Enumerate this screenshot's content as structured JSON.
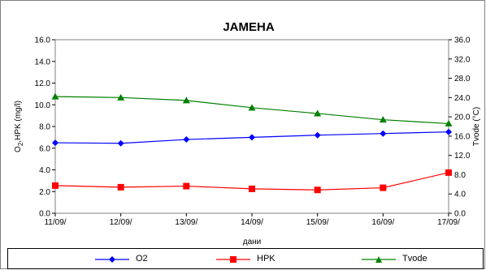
{
  "chart_data": {
    "type": "line",
    "title": "ЈАМЕНА",
    "xlabel": "дани",
    "ylabel": "O2,HPK (mg/l)",
    "ylabel_parts": {
      "base": "O",
      "sub": "2",
      "rest": ",HPK (mg/l)"
    },
    "y2label": "Tvode (°C)",
    "categories": [
      "11/09/",
      "12/09/",
      "13/09/",
      "14/09/",
      "15/09/",
      "16/09/",
      "17/09/"
    ],
    "ylim": [
      0,
      16
    ],
    "y_ticks": [
      "0.0",
      "2.0",
      "4.0",
      "6.0",
      "8.0",
      "10.0",
      "12.0",
      "14.0",
      "16.0"
    ],
    "y2lim": [
      0,
      36
    ],
    "y2_ticks": [
      "0.0",
      "4.0",
      "8.0",
      "12.0",
      "16.0",
      "20.0",
      "24.0",
      "28.0",
      "32.0",
      "36.0"
    ],
    "grid": false,
    "legend_position": "bottom",
    "series": [
      {
        "name": "O2",
        "axis": "left",
        "color": "#0000ff",
        "marker": "diamond",
        "values": [
          6.5,
          6.45,
          6.8,
          7.0,
          7.2,
          7.35,
          7.5
        ]
      },
      {
        "name": "HPK",
        "axis": "left",
        "color": "#ff0000",
        "marker": "square",
        "values": [
          2.55,
          2.4,
          2.5,
          2.25,
          2.15,
          2.35,
          3.75
        ]
      },
      {
        "name": "Tvode",
        "axis": "right",
        "color": "#008000",
        "marker": "triangle",
        "values": [
          24.2,
          24.0,
          23.4,
          21.9,
          20.7,
          19.4,
          18.6
        ]
      }
    ]
  }
}
